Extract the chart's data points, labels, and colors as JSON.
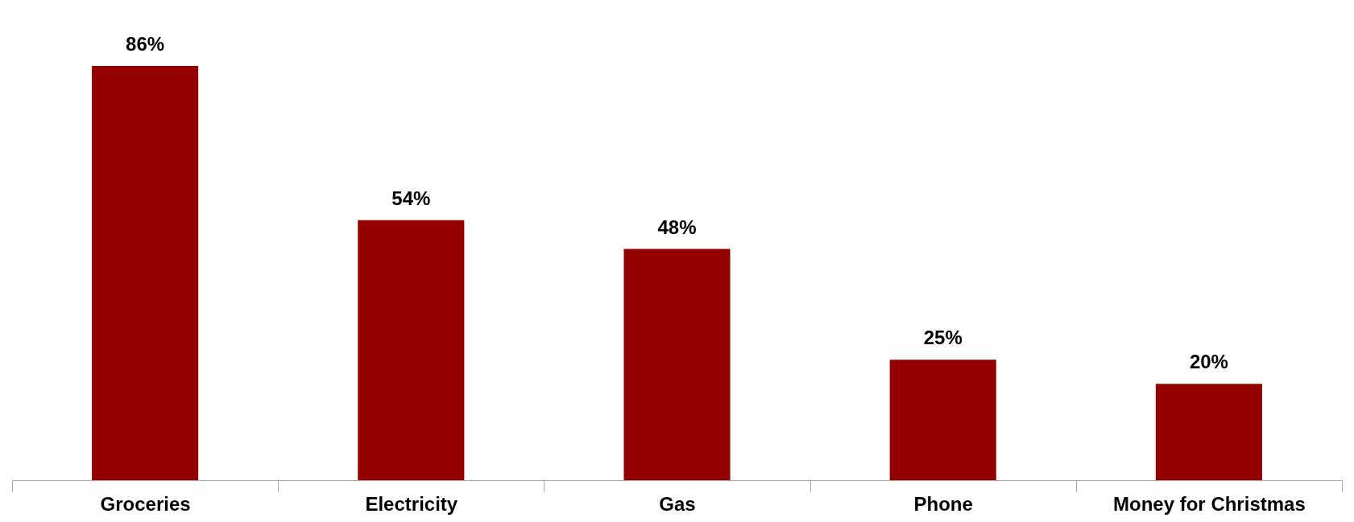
{
  "chart_data": {
    "type": "bar",
    "categories": [
      "Groceries",
      "Electricity",
      "Gas",
      "Phone",
      "Money for Christmas"
    ],
    "values": [
      86,
      54,
      48,
      25,
      20
    ],
    "value_labels": [
      "86%",
      "54%",
      "48%",
      "25%",
      "20%"
    ],
    "color": "#940000",
    "tick_labels": "x"
  }
}
